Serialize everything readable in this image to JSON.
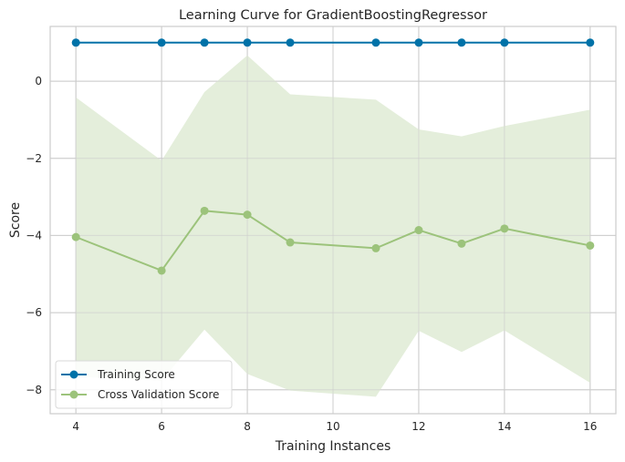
{
  "chart_data": {
    "type": "line",
    "title": "Learning Curve for GradientBoostingRegressor",
    "xlabel": "Training Instances",
    "ylabel": "Score",
    "xlim": [
      3.4,
      16.6
    ],
    "ylim": [
      -8.62,
      1.42
    ],
    "xticks": [
      4,
      6,
      8,
      10,
      12,
      14,
      16
    ],
    "yticks": [
      0,
      -2,
      -4,
      -6,
      -8
    ],
    "xtick_labels": [
      "4",
      "6",
      "8",
      "10",
      "12",
      "14",
      "16"
    ],
    "ytick_labels": [
      "0",
      "−2",
      "−4",
      "−6",
      "−8"
    ],
    "grid": true,
    "legend_position": "lower-left",
    "x": [
      4,
      6,
      7,
      8,
      9,
      11,
      12,
      13,
      14,
      16
    ],
    "series": [
      {
        "name": "Training Score",
        "color": "#0072a8",
        "values": [
          1.0,
          1.0,
          1.0,
          1.0,
          1.0,
          1.0,
          1.0,
          1.0,
          1.0,
          1.0
        ]
      },
      {
        "name": "Cross Validation Score",
        "color": "#9cc37b",
        "values": [
          -4.04,
          -4.91,
          -3.36,
          -3.46,
          -4.18,
          -4.33,
          -3.86,
          -4.21,
          -3.82,
          -4.26
        ],
        "band_upper": [
          -0.42,
          -2.06,
          -0.28,
          0.67,
          -0.34,
          -0.48,
          -1.25,
          -1.43,
          -1.16,
          -0.74
        ],
        "band_lower": [
          -7.66,
          -7.76,
          -6.44,
          -7.59,
          -8.02,
          -8.18,
          -6.47,
          -7.02,
          -6.46,
          -7.82
        ],
        "band_color": "#e4eedb"
      }
    ]
  }
}
